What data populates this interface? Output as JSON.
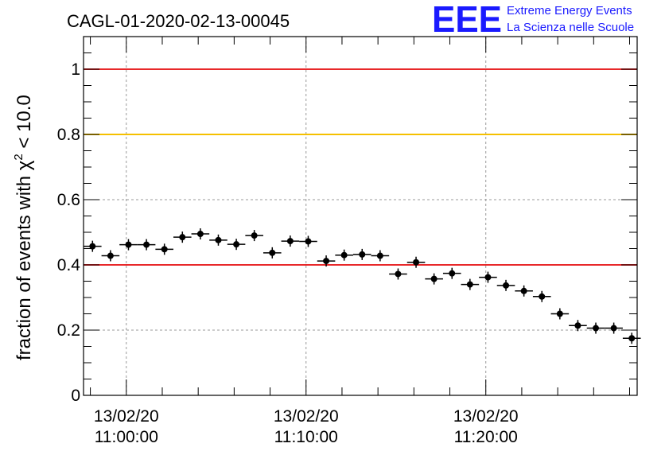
{
  "header": {
    "title": "CAGL-01-2020-02-13-00045",
    "logo_text": "EEE",
    "logo_line1": "Extreme Energy Events",
    "logo_line2": "La Scienza nelle Scuole"
  },
  "colors": {
    "logo": "#1a1aff",
    "red_line": "#e8282a",
    "orange_line": "#f5c000",
    "marker": "#000000",
    "grid": "#999999"
  },
  "chart_data": {
    "type": "scatter",
    "title": "CAGL-01-2020-02-13-00045",
    "xlabel": "",
    "ylabel_main": "fraction of events with χ",
    "ylabel_sup": "2",
    "ylabel_tail": " < 10.0",
    "x_unit": "minutes after 13/02/20 10:57:37",
    "xlim": [
      0,
      30.8
    ],
    "ylim": [
      0,
      1.1
    ],
    "grid": true,
    "x_ticks": [
      {
        "x": 2.38,
        "date": "13/02/20",
        "time": "11:00:00"
      },
      {
        "x": 12.38,
        "date": "13/02/20",
        "time": "11:10:00"
      },
      {
        "x": 22.38,
        "date": "13/02/20",
        "time": "11:20:00"
      }
    ],
    "y_ticks": [
      {
        "y": 0,
        "label": "0"
      },
      {
        "y": 0.2,
        "label": "0.2"
      },
      {
        "y": 0.4,
        "label": "0.4"
      },
      {
        "y": 0.6,
        "label": "0.6"
      },
      {
        "y": 0.8,
        "label": "0.8"
      },
      {
        "y": 1,
        "label": "1"
      }
    ],
    "reference_lines": [
      {
        "y": 1.0,
        "color": "#e8282a"
      },
      {
        "y": 0.8,
        "color": "#f5c000"
      },
      {
        "y": 0.4,
        "color": "#e8282a"
      }
    ],
    "bin_width": 1,
    "points": [
      {
        "x": 0.5,
        "y": 0.457
      },
      {
        "x": 1.5,
        "y": 0.428
      },
      {
        "x": 2.5,
        "y": 0.462
      },
      {
        "x": 3.5,
        "y": 0.462
      },
      {
        "x": 4.5,
        "y": 0.448
      },
      {
        "x": 5.5,
        "y": 0.485
      },
      {
        "x": 6.5,
        "y": 0.495
      },
      {
        "x": 7.5,
        "y": 0.476
      },
      {
        "x": 8.5,
        "y": 0.463
      },
      {
        "x": 9.5,
        "y": 0.49
      },
      {
        "x": 10.5,
        "y": 0.437
      },
      {
        "x": 11.5,
        "y": 0.473
      },
      {
        "x": 12.5,
        "y": 0.472
      },
      {
        "x": 13.5,
        "y": 0.412
      },
      {
        "x": 14.5,
        "y": 0.43
      },
      {
        "x": 15.5,
        "y": 0.432
      },
      {
        "x": 16.5,
        "y": 0.428
      },
      {
        "x": 17.5,
        "y": 0.372
      },
      {
        "x": 18.5,
        "y": 0.408
      },
      {
        "x": 19.5,
        "y": 0.357
      },
      {
        "x": 20.5,
        "y": 0.374
      },
      {
        "x": 21.5,
        "y": 0.34
      },
      {
        "x": 22.5,
        "y": 0.362
      },
      {
        "x": 23.5,
        "y": 0.337
      },
      {
        "x": 24.5,
        "y": 0.32
      },
      {
        "x": 25.5,
        "y": 0.303
      },
      {
        "x": 26.5,
        "y": 0.25
      },
      {
        "x": 27.5,
        "y": 0.214
      },
      {
        "x": 28.5,
        "y": 0.206
      },
      {
        "x": 29.5,
        "y": 0.206
      },
      {
        "x": 30.5,
        "y": 0.175
      }
    ]
  }
}
